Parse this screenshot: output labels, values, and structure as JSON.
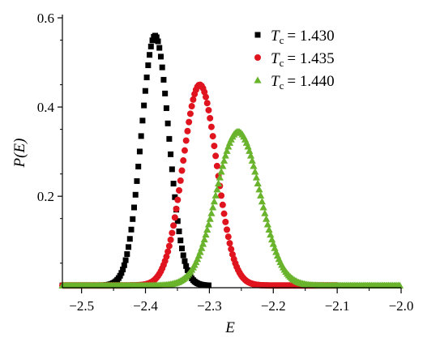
{
  "chart_data": {
    "type": "scatter",
    "xlabel": "E",
    "ylabel": "P(E)",
    "xlim": [
      -2.53,
      -2.0
    ],
    "ylim": [
      -0.005,
      0.6
    ],
    "x_ticks": [
      -2.5,
      -2.4,
      -2.3,
      -2.2,
      -2.1,
      -2.0
    ],
    "x_tick_labels": [
      "−2.5",
      "−2.4",
      "−2.3",
      "−2.2",
      "−2.1",
      "−2.0"
    ],
    "y_ticks": [
      0.2,
      0.4,
      0.6
    ],
    "y_tick_labels": [
      "0.2",
      "0.4",
      "0.6"
    ],
    "legend_position": "top-right",
    "grid": false,
    "series": [
      {
        "name": "T_c = 1.430",
        "legend_var": "T",
        "legend_sub": "c",
        "legend_value": "= 1.430",
        "marker": "square",
        "color": "#000000",
        "peak_x": -2.385,
        "peak_y": 0.56,
        "sigma": 0.0215,
        "x_range": [
          -2.53,
          -2.3
        ],
        "point_spacing": 0.0022
      },
      {
        "name": "T_c = 1.435",
        "legend_var": "T",
        "legend_sub": "c",
        "legend_value": "= 1.435",
        "marker": "circle",
        "color": "#e0141e",
        "peak_x": -2.315,
        "peak_y": 0.45,
        "sigma": 0.0265,
        "x_range": [
          -2.53,
          -2.1
        ],
        "point_spacing": 0.0022
      },
      {
        "name": "T_c = 1.440",
        "legend_var": "T",
        "legend_sub": "c",
        "legend_value": "= 1.440",
        "marker": "triangle",
        "color": "#6ab42d",
        "peak_x": -2.255,
        "peak_y": 0.345,
        "sigma": 0.034,
        "x_range": [
          -2.53,
          -2.0
        ],
        "point_spacing": 0.0022
      }
    ]
  }
}
